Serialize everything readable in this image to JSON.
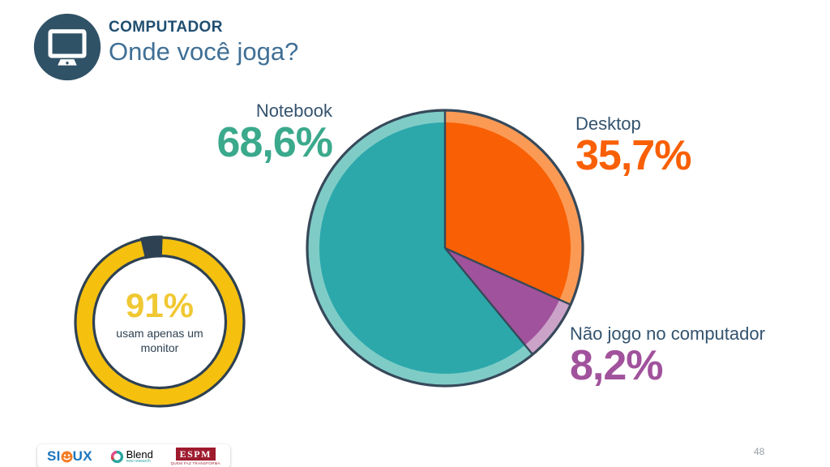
{
  "header": {
    "title": "COMPUTADOR",
    "subtitle": "Onde você joga?"
  },
  "chart_data": [
    {
      "type": "pie",
      "title": "Onde você joga?",
      "labels": [
        "Desktop",
        "Não jogo no computador",
        "Notebook"
      ],
      "values": [
        35.7,
        8.2,
        68.6
      ],
      "value_labels": [
        "35,7%",
        "8,2%",
        "68,6%"
      ],
      "colors": [
        "#f95f04",
        "#a1529c",
        "#2ca8ab"
      ],
      "light_colors": [
        "#fb9a55",
        "#cba3c9",
        "#7fccc7"
      ],
      "outline_color": "#36495a",
      "start_angle_deg": 0,
      "direction": "clockwise"
    },
    {
      "type": "donut",
      "value": 91,
      "value_label": "91%",
      "caption": "usam apenas um monitor",
      "ring_color": "#f5c00e",
      "edge_color": "#2e4152"
    }
  ],
  "footer": {
    "logos": [
      {
        "name": "SIOUX",
        "name_parts": [
          "SI",
          "UX"
        ]
      },
      {
        "name": "Blend",
        "subtext": "new research"
      },
      {
        "name": "ESPM",
        "subtext": "QUEM FAZ TRANSFORMA"
      }
    ],
    "page_number": "48"
  },
  "colors": {
    "navy": "#2e4152",
    "header_circle": "#2f5267",
    "title_blue": "#1f4e70",
    "subtitle_blue": "#406f95",
    "label_blue": "#34536e",
    "teal_value": "#3ba98c",
    "orange": "#f95f04",
    "purple": "#a1529c",
    "value_yellow": "#f0c832",
    "page_gray": "#97a0a8",
    "sioux_blue": "#1b75bc",
    "sioux_orange": "#f47b20",
    "espm_red": "#9e1b2e",
    "blend_teal": "#2aa5a0",
    "blend_pink": "#e84c8b",
    "blend_red": "#d64541"
  }
}
